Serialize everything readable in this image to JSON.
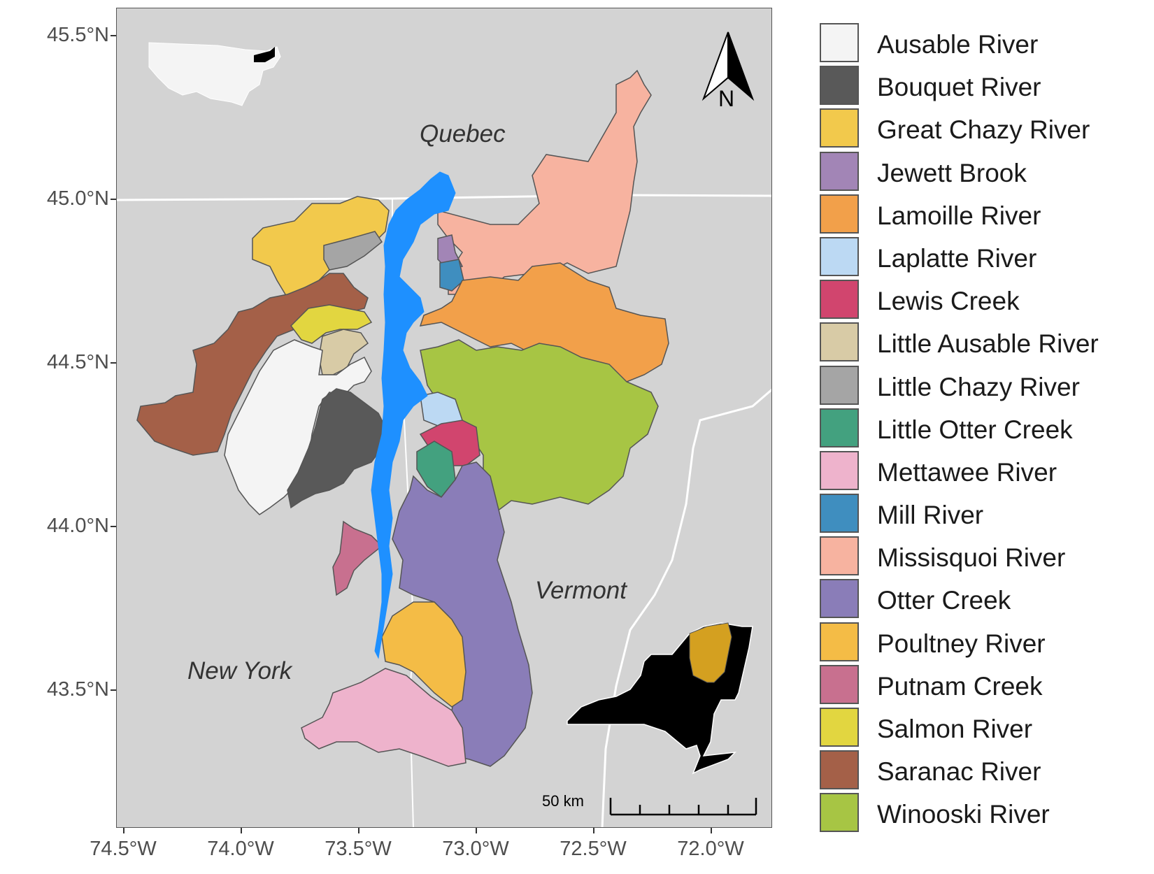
{
  "map": {
    "regions": {
      "quebec": "Quebec",
      "vermont": "Vermont",
      "new_york": "New York"
    },
    "north_arrow": "N",
    "scale_bar": "50 km",
    "y_ticks": [
      "45.5°N",
      "45.0°N",
      "44.5°N",
      "44.0°N",
      "43.5°N"
    ],
    "x_ticks": [
      "74.5°W",
      "74.0°W",
      "73.5°W",
      "73.0°W",
      "72.5°W",
      "72.0°W"
    ],
    "lake_color": "#1e90ff",
    "basemap_color": "#d3d3d3"
  },
  "legend": {
    "items": [
      {
        "label": "Ausable River",
        "color": "#f4f4f4"
      },
      {
        "label": "Bouquet River",
        "color": "#595959"
      },
      {
        "label": "Great Chazy River",
        "color": "#f2c94c"
      },
      {
        "label": "Jewett Brook",
        "color": "#a285b6"
      },
      {
        "label": "Lamoille River",
        "color": "#f2a04a"
      },
      {
        "label": "Laplatte River",
        "color": "#bcd9f3"
      },
      {
        "label": "Lewis Creek",
        "color": "#d1456e"
      },
      {
        "label": "Little Ausable River",
        "color": "#d8cba6"
      },
      {
        "label": "Little Chazy River",
        "color": "#a5a5a5"
      },
      {
        "label": "Little Otter Creek",
        "color": "#43a17f"
      },
      {
        "label": "Mettawee River",
        "color": "#eeb3cc"
      },
      {
        "label": "Mill River",
        "color": "#3f8ebf"
      },
      {
        "label": "Missisquoi River",
        "color": "#f7b3a0"
      },
      {
        "label": "Otter Creek",
        "color": "#8a7db8"
      },
      {
        "label": "Poultney River",
        "color": "#f4bc46"
      },
      {
        "label": "Putnam Creek",
        "color": "#c8708f"
      },
      {
        "label": "Salmon River",
        "color": "#e2d640"
      },
      {
        "label": "Saranac River",
        "color": "#a46048"
      },
      {
        "label": "Winooski River",
        "color": "#a7c544"
      }
    ]
  }
}
